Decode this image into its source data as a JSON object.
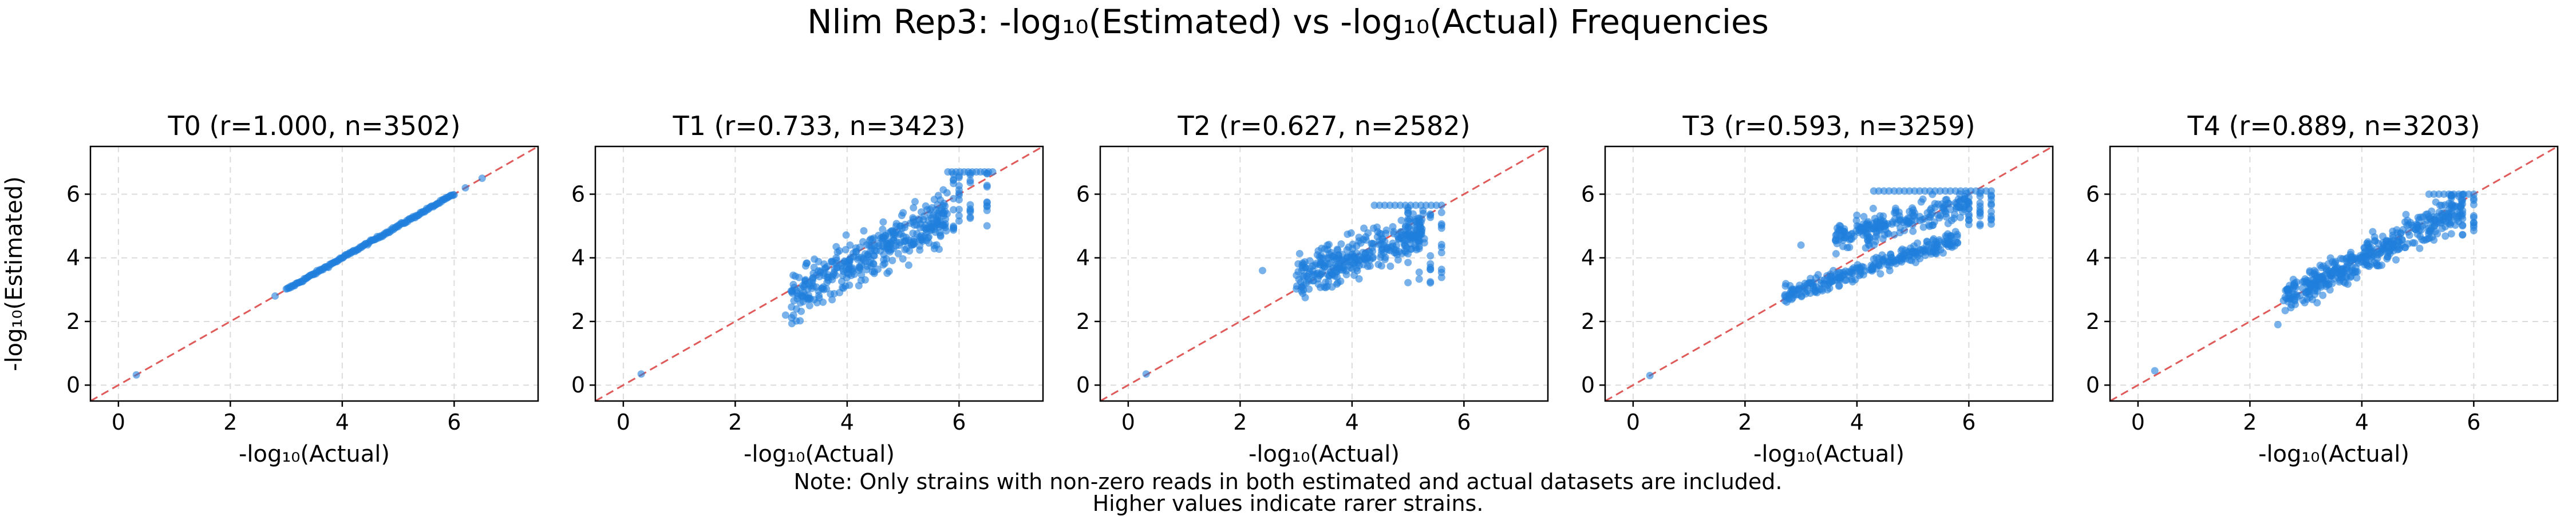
{
  "figure": {
    "title": "Nlim Rep3: -log₁₀(Estimated) vs -log₁₀(Actual) Frequencies",
    "note_line_1": "Note: Only strains with non-zero reads in both estimated and actual datasets are included.",
    "note_line_2": "Higher values indicate rarer strains."
  },
  "colors": {
    "points": "#1f7fdc",
    "diagonal": "#e05a5a",
    "grid": "#dcdcdc"
  },
  "chart_data": [
    {
      "type": "scatter",
      "title": "T0 (r=1.000, n=3502)",
      "xlabel": "-log₁₀(Actual)",
      "ylabel": "-log₁₀(Estimated)",
      "xlim": [
        -0.5,
        7.5
      ],
      "ylim": [
        -0.5,
        7.5
      ],
      "xticks": [
        0,
        2,
        4,
        6
      ],
      "yticks": [
        0,
        2,
        4,
        6
      ],
      "grid": true,
      "reference_line": "y = x (dashed)",
      "clusters": [
        {
          "kind": "isolated",
          "points": [
            [
              0.32,
              0.32
            ],
            [
              2.8,
              2.8
            ],
            [
              6.5,
              6.5
            ],
            [
              6.2,
              6.2
            ]
          ]
        },
        {
          "kind": "diagonal",
          "count": 160,
          "x_range": [
            3.0,
            6.0
          ],
          "slope": 1.0,
          "spread": 0.03
        }
      ]
    },
    {
      "type": "scatter",
      "title": "T1 (r=0.733, n=3423)",
      "xlabel": "-log₁₀(Actual)",
      "ylabel": "",
      "xlim": [
        -0.5,
        7.5
      ],
      "ylim": [
        -0.5,
        7.5
      ],
      "xticks": [
        0,
        2,
        4,
        6
      ],
      "yticks": [
        0,
        2,
        4,
        6
      ],
      "grid": true,
      "reference_line": "y = x (dashed)",
      "clusters": [
        {
          "kind": "isolated",
          "points": [
            [
              0.32,
              0.35
            ],
            [
              2.9,
              2.2
            ]
          ]
        },
        {
          "kind": "band",
          "count": 380,
          "x_range": [
            3.0,
            5.8
          ],
          "slope": 0.95,
          "intercept": 0.0,
          "spread": 0.55,
          "offset": -0.1
        },
        {
          "kind": "columns",
          "xs": [
            5.9,
            6.0,
            6.2,
            6.5
          ],
          "y_range": [
            4.8,
            6.7
          ],
          "count": 40
        },
        {
          "kind": "cap",
          "y": 6.7,
          "x_range": [
            5.8,
            6.6
          ],
          "count": 12
        }
      ]
    },
    {
      "type": "scatter",
      "title": "T2 (r=0.627, n=2582)",
      "xlabel": "-log₁₀(Actual)",
      "ylabel": "",
      "xlim": [
        -0.5,
        7.5
      ],
      "ylim": [
        -0.5,
        7.5
      ],
      "xticks": [
        0,
        2,
        4,
        6
      ],
      "yticks": [
        0,
        2,
        4,
        6
      ],
      "grid": true,
      "reference_line": "y = x (dashed)",
      "clusters": [
        {
          "kind": "isolated",
          "points": [
            [
              0.32,
              0.35
            ],
            [
              2.4,
              3.6
            ]
          ]
        },
        {
          "kind": "band",
          "count": 320,
          "x_range": [
            3.0,
            5.3
          ],
          "slope": 0.7,
          "intercept": 1.2,
          "spread": 0.45,
          "offset": 0.0
        },
        {
          "kind": "columns",
          "xs": [
            5.0,
            5.2,
            5.4,
            5.6
          ],
          "y_range": [
            3.2,
            5.7
          ],
          "count": 40
        },
        {
          "kind": "cap",
          "y": 5.65,
          "x_range": [
            4.4,
            5.6
          ],
          "count": 14
        }
      ]
    },
    {
      "type": "scatter",
      "title": "T3 (r=0.593, n=3259)",
      "xlabel": "-log₁₀(Actual)",
      "ylabel": "",
      "xlim": [
        -0.5,
        7.5
      ],
      "ylim": [
        -0.5,
        7.5
      ],
      "xticks": [
        0,
        2,
        4,
        6
      ],
      "yticks": [
        0,
        2,
        4,
        6
      ],
      "grid": true,
      "reference_line": "y = x (dashed)",
      "clusters": [
        {
          "kind": "isolated",
          "points": [
            [
              0.3,
              0.3
            ],
            [
              3.0,
              4.4
            ]
          ]
        },
        {
          "kind": "band",
          "count": 260,
          "x_range": [
            2.7,
            5.8
          ],
          "slope": 0.58,
          "intercept": 1.25,
          "spread": 0.22,
          "offset": 0.0
        },
        {
          "kind": "band",
          "count": 220,
          "x_range": [
            3.6,
            6.0
          ],
          "slope": 0.45,
          "intercept": 3.0,
          "spread": 0.3,
          "offset": 0.0
        },
        {
          "kind": "columns",
          "xs": [
            6.0,
            6.2,
            6.4
          ],
          "y_range": [
            5.0,
            6.1
          ],
          "count": 30
        },
        {
          "kind": "cap",
          "y": 6.1,
          "x_range": [
            4.3,
            6.4
          ],
          "count": 24
        }
      ]
    },
    {
      "type": "scatter",
      "title": "T4 (r=0.889, n=3203)",
      "xlabel": "-log₁₀(Actual)",
      "ylabel": "",
      "xlim": [
        -0.5,
        7.5
      ],
      "ylim": [
        -0.5,
        7.5
      ],
      "xticks": [
        0,
        2,
        4,
        6
      ],
      "yticks": [
        0,
        2,
        4,
        6
      ],
      "grid": true,
      "reference_line": "y = x (dashed)",
      "clusters": [
        {
          "kind": "isolated",
          "points": [
            [
              0.3,
              0.45
            ],
            [
              2.5,
              1.9
            ]
          ]
        },
        {
          "kind": "band",
          "count": 420,
          "x_range": [
            2.6,
            5.8
          ],
          "slope": 0.9,
          "intercept": 0.35,
          "spread": 0.35,
          "offset": 0.0
        },
        {
          "kind": "columns",
          "xs": [
            5.6,
            5.8,
            6.0
          ],
          "y_range": [
            4.7,
            6.0
          ],
          "count": 30
        },
        {
          "kind": "cap",
          "y": 6.0,
          "x_range": [
            5.2,
            6.0
          ],
          "count": 10
        }
      ]
    }
  ]
}
